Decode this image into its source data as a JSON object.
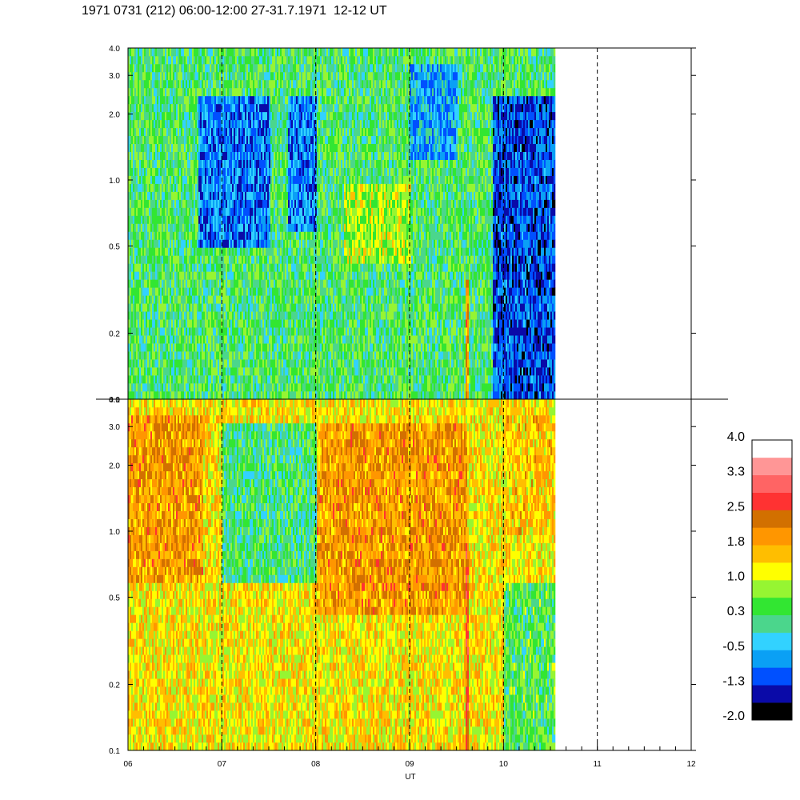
{
  "title": "1971 0731 (212) 06:00-12:00 27-31.7.1971  12-12 UT",
  "chart_data": {
    "type": "heatmap",
    "title": "1971 0731 (212) 06:00-12:00 27-31.7.1971  12-12 UT",
    "xlabel": "UT",
    "x_ticks": [
      "06",
      "07",
      "08",
      "09",
      "10",
      "11",
      "12"
    ],
    "xlim": [
      6,
      12
    ],
    "data_end_hour": 10.55,
    "grid": "dashed vertical lines at each hour",
    "y_scale": "log",
    "ylim": [
      0.1,
      4.0
    ],
    "y_ticks": [
      "4.0",
      "3.0",
      "2.0",
      "1.0",
      "0.5",
      "0.2",
      "0.1"
    ],
    "y_tick_values": [
      4.0,
      3.0,
      2.0,
      1.0,
      0.5,
      0.2,
      0.1
    ],
    "panels": [
      {
        "name": "upper",
        "typical_level": 0.3,
        "features": [
          {
            "x_start": 6.75,
            "x_end": 7.5,
            "y_min": 0.5,
            "y_max": 2.5,
            "level": -0.9
          },
          {
            "x_start": 7.7,
            "x_end": 8.0,
            "y_min": 0.6,
            "y_max": 2.5,
            "level": -0.8
          },
          {
            "x_start": 8.3,
            "x_end": 9.0,
            "y_min": 0.4,
            "y_max": 1.0,
            "level": 0.9
          },
          {
            "x_start": 9.0,
            "x_end": 9.5,
            "y_min": 1.2,
            "y_max": 3.5,
            "level": -0.6
          },
          {
            "x_start": 9.88,
            "x_end": 10.55,
            "y_min": 0.1,
            "y_max": 2.5,
            "level": -1.1
          },
          {
            "x_start": 9.58,
            "x_end": 9.62,
            "y_min": 0.1,
            "y_max": 0.35,
            "level": 1.9
          }
        ]
      },
      {
        "name": "lower",
        "typical_level": 1.3,
        "features": [
          {
            "x_start": 6.0,
            "x_end": 6.8,
            "y_min": 0.6,
            "y_max": 3.5,
            "level": 1.9
          },
          {
            "x_start": 7.0,
            "x_end": 8.0,
            "y_min": 0.6,
            "y_max": 3.0,
            "level": 0.2
          },
          {
            "x_start": 8.0,
            "x_end": 9.6,
            "y_min": 0.4,
            "y_max": 3.0,
            "level": 1.9
          },
          {
            "x_start": 9.58,
            "x_end": 9.62,
            "y_min": 0.1,
            "y_max": 0.9,
            "level": 2.6
          },
          {
            "x_start": 10.0,
            "x_end": 10.55,
            "y_min": 0.1,
            "y_max": 0.6,
            "level": 0.4
          },
          {
            "x_start": 10.0,
            "x_end": 10.55,
            "y_min": 1.0,
            "y_max": 3.5,
            "level": 1.5
          }
        ]
      }
    ],
    "colorbar": {
      "labels": [
        "4.0",
        "3.3",
        "2.5",
        "1.8",
        "1.0",
        "0.3",
        "-0.5",
        "-1.3",
        "-2.0"
      ],
      "range": [
        -2.0,
        4.0
      ],
      "colors": [
        "#000000",
        "#0a0aa8",
        "#0050ff",
        "#0aa0f5",
        "#32d2ff",
        "#4bd68c",
        "#32e632",
        "#96f532",
        "#ffff00",
        "#ffbe00",
        "#ff9600",
        "#d27000",
        "#ff3232",
        "#ff6464",
        "#ff9696",
        "#ffffff"
      ]
    }
  }
}
